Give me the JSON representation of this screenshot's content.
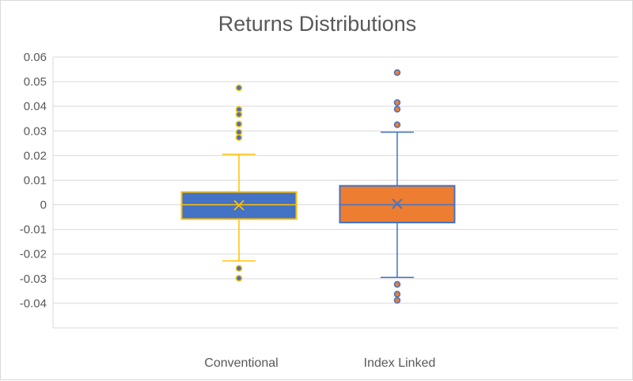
{
  "chart_data": {
    "type": "box",
    "title": "Returns Distributions",
    "xlabel": "",
    "ylabel": "",
    "ylim": [
      -0.04,
      0.06
    ],
    "yticks": [
      "0.06",
      "0.05",
      "0.04",
      "0.03",
      "0.02",
      "0.01",
      "0",
      "-0.01",
      "-0.02",
      "-0.03",
      "-0.04"
    ],
    "grid": true,
    "legend": "none",
    "categories": [
      "Conventional",
      "Index Linked"
    ],
    "series": [
      {
        "color": "#4472C4",
        "line_color": "#FFC000",
        "whisker_low": -0.0228,
        "q1": -0.0058,
        "median": 0.0,
        "mean": -0.0002,
        "q3": 0.0052,
        "whisker_high": 0.0205,
        "outliers": [
          0.0475,
          0.0387,
          0.0367,
          0.0328,
          0.0295,
          0.0273,
          -0.0258,
          -0.0298
        ]
      },
      {
        "color": "#ED7D31",
        "line_color": "#4472C4",
        "whisker_low": -0.0295,
        "q1": -0.0072,
        "median": 0.0,
        "mean": 0.0004,
        "q3": 0.0077,
        "whisker_high": 0.0295,
        "outliers": [
          0.0537,
          0.0415,
          0.0388,
          0.0325,
          -0.0323,
          -0.0363,
          -0.0388
        ]
      }
    ]
  }
}
